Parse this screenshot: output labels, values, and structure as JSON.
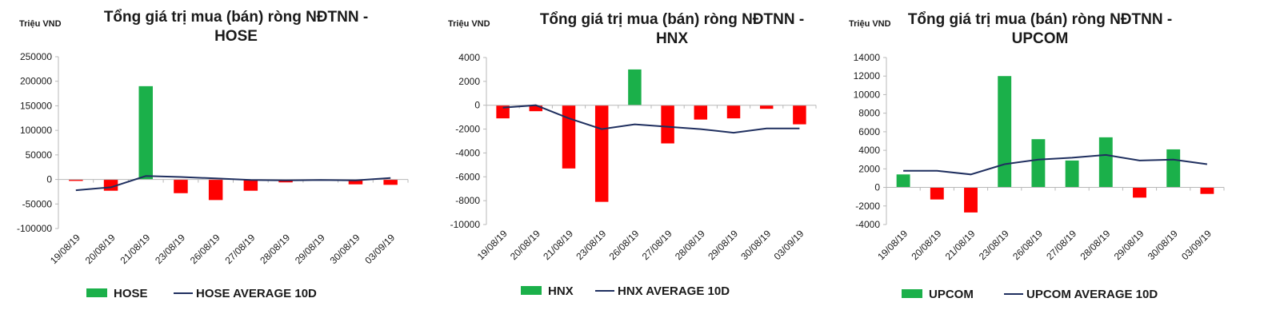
{
  "colors": {
    "positive": "#1bb04a",
    "negative": "#ff0000",
    "average_line": "#1f2f5f",
    "axis": "#b8b8b8"
  },
  "chart_data": [
    {
      "type": "bar",
      "title_line1": "Tổng giá trị mua (bán) ròng NĐTNN -",
      "title_line2": "HOSE",
      "unit_label": "Triệu VND",
      "categories": [
        "19/08/19",
        "20/08/19",
        "21/08/19",
        "23/08/19",
        "26/08/19",
        "27/08/19",
        "28/08/19",
        "29/08/19",
        "30/08/19",
        "03/09/19"
      ],
      "yticks": [
        250000,
        200000,
        150000,
        100000,
        50000,
        0,
        -50000,
        -100000
      ],
      "ylim": [
        -100000,
        250000
      ],
      "series": [
        {
          "name": "HOSE",
          "kind": "bar",
          "values": [
            -3000,
            -23000,
            190000,
            -28000,
            -42000,
            -23000,
            -6000,
            -1000,
            -10000,
            -11000
          ]
        },
        {
          "name": "HOSE AVERAGE 10D",
          "kind": "line",
          "values": [
            -22000,
            -16000,
            7000,
            5000,
            2000,
            -1000,
            -2000,
            -1000,
            -2000,
            3000
          ]
        }
      ],
      "legend_position": "bottom"
    },
    {
      "type": "bar",
      "title_line1": "Tổng giá trị mua (bán) ròng NĐTNN -",
      "title_line2": "HNX",
      "unit_label": "Triệu VND",
      "categories": [
        "19/08/19",
        "20/08/19",
        "21/08/19",
        "23/08/19",
        "26/08/19",
        "27/08/19",
        "28/08/19",
        "29/08/19",
        "30/08/19",
        "03/09/19"
      ],
      "yticks": [
        4000,
        2000,
        0,
        -2000,
        -4000,
        -6000,
        -8000,
        -10000
      ],
      "ylim": [
        -10000,
        4000
      ],
      "series": [
        {
          "name": "HNX",
          "kind": "bar",
          "values": [
            -1100,
            -500,
            -5300,
            -8100,
            3000,
            -3200,
            -1200,
            -1100,
            -300,
            -1600
          ]
        },
        {
          "name": "HNX AVERAGE 10D",
          "kind": "line",
          "values": [
            -200,
            0,
            -1100,
            -2000,
            -1600,
            -1800,
            -2000,
            -2300,
            -1950,
            -1950
          ]
        }
      ],
      "legend_position": "bottom"
    },
    {
      "type": "bar",
      "title_line1": "Tổng giá trị mua (bán) ròng NĐTNN -",
      "title_line2": "UPCOM",
      "unit_label": "Triệu VND",
      "categories": [
        "19/08/19",
        "20/08/19",
        "21/08/19",
        "23/08/19",
        "26/08/19",
        "27/08/19",
        "28/08/19",
        "29/08/19",
        "30/08/19",
        "03/09/19"
      ],
      "yticks": [
        14000,
        12000,
        10000,
        8000,
        6000,
        4000,
        2000,
        0,
        -2000,
        -4000
      ],
      "ylim": [
        -4000,
        14000
      ],
      "series": [
        {
          "name": "UPCOM",
          "kind": "bar",
          "values": [
            1400,
            -1300,
            -2700,
            12000,
            5200,
            2900,
            5400,
            -1100,
            4100,
            -700
          ]
        },
        {
          "name": "UPCOM AVERAGE 10D",
          "kind": "line",
          "values": [
            1800,
            1800,
            1400,
            2500,
            3000,
            3200,
            3500,
            2900,
            3000,
            2500
          ]
        }
      ],
      "legend_position": "bottom"
    }
  ]
}
